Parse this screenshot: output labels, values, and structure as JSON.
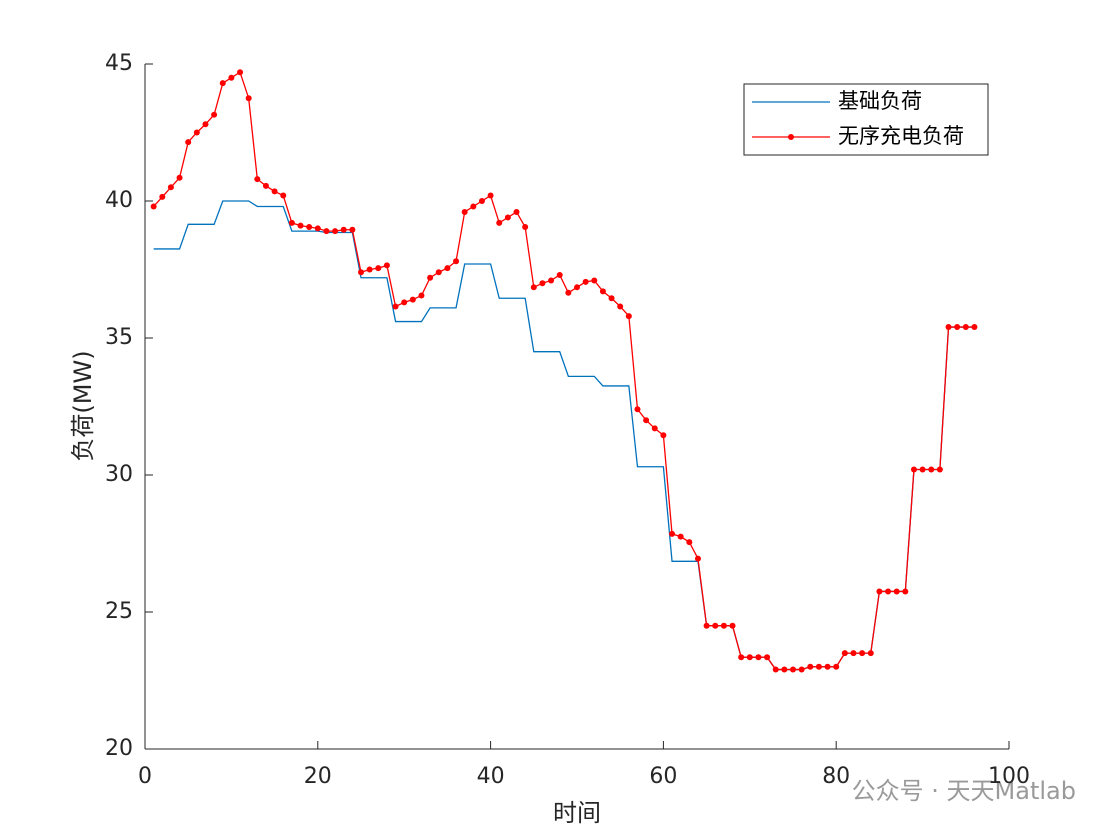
{
  "chart_data": {
    "type": "line",
    "xlabel": "时间",
    "ylabel": "负荷(MW)",
    "x": [
      1,
      2,
      3,
      4,
      5,
      6,
      7,
      8,
      9,
      10,
      11,
      12,
      13,
      14,
      15,
      16,
      17,
      18,
      19,
      20,
      21,
      22,
      23,
      24,
      25,
      26,
      27,
      28,
      29,
      30,
      31,
      32,
      33,
      34,
      35,
      36,
      37,
      38,
      39,
      40,
      41,
      42,
      43,
      44,
      45,
      46,
      47,
      48,
      49,
      50,
      51,
      52,
      53,
      54,
      55,
      56,
      57,
      58,
      59,
      60,
      61,
      62,
      63,
      64,
      65,
      66,
      67,
      68,
      69,
      70,
      71,
      72,
      73,
      74,
      75,
      76,
      77,
      78,
      79,
      80,
      81,
      82,
      83,
      84,
      85,
      86,
      87,
      88,
      89,
      90,
      91,
      92,
      93,
      94,
      95,
      96
    ],
    "series": [
      {
        "name": "基础负荷",
        "color": "#0072BD",
        "marker": false,
        "values": [
          38.25,
          38.25,
          38.25,
          38.25,
          39.15,
          39.15,
          39.15,
          39.15,
          40.0,
          40.0,
          40.0,
          40.0,
          39.8,
          39.8,
          39.8,
          39.8,
          38.9,
          38.9,
          38.9,
          38.9,
          38.85,
          38.85,
          38.85,
          38.85,
          37.2,
          37.2,
          37.2,
          37.2,
          35.6,
          35.6,
          35.6,
          35.6,
          36.1,
          36.1,
          36.1,
          36.1,
          37.7,
          37.7,
          37.7,
          37.7,
          36.45,
          36.45,
          36.45,
          36.45,
          34.5,
          34.5,
          34.5,
          34.5,
          33.6,
          33.6,
          33.6,
          33.6,
          33.25,
          33.25,
          33.25,
          33.25,
          30.3,
          30.3,
          30.3,
          30.3,
          26.85,
          26.85,
          26.85,
          26.85,
          24.5,
          24.5,
          24.5,
          24.5,
          23.35,
          23.35,
          23.35,
          23.35,
          22.9,
          22.9,
          22.9,
          22.9,
          23.0,
          23.0,
          23.0,
          23.0,
          23.5,
          23.5,
          23.5,
          23.5,
          25.75,
          25.75,
          25.75,
          25.75,
          30.2,
          30.2,
          30.2,
          30.2,
          35.4,
          35.4,
          35.4,
          35.4
        ]
      },
      {
        "name": "无序充电负荷",
        "color": "#FF0000",
        "marker": true,
        "values": [
          39.8,
          40.15,
          40.5,
          40.85,
          42.15,
          42.5,
          42.8,
          43.15,
          44.3,
          44.5,
          44.7,
          43.75,
          40.8,
          40.55,
          40.35,
          40.2,
          39.2,
          39.1,
          39.05,
          39.0,
          38.9,
          38.9,
          38.95,
          38.95,
          37.4,
          37.5,
          37.55,
          37.65,
          36.15,
          36.3,
          36.4,
          36.55,
          37.2,
          37.4,
          37.55,
          37.8,
          39.6,
          39.8,
          40.0,
          40.2,
          39.2,
          39.4,
          39.6,
          39.05,
          36.85,
          37.0,
          37.1,
          37.3,
          36.65,
          36.85,
          37.05,
          37.1,
          36.7,
          36.45,
          36.15,
          35.8,
          32.4,
          32.0,
          31.7,
          31.45,
          27.85,
          27.75,
          27.55,
          26.95,
          24.5,
          24.5,
          24.5,
          24.5,
          23.35,
          23.35,
          23.35,
          23.35,
          22.9,
          22.9,
          22.9,
          22.9,
          23.0,
          23.0,
          23.0,
          23.0,
          23.5,
          23.5,
          23.5,
          23.5,
          25.75,
          25.75,
          25.75,
          25.75,
          30.2,
          30.2,
          30.2,
          30.2,
          35.4,
          35.4,
          35.4,
          35.4
        ]
      }
    ],
    "xlim": [
      0,
      100
    ],
    "ylim": [
      20,
      45
    ],
    "xticks": [
      0,
      20,
      40,
      60,
      80,
      100
    ],
    "yticks": [
      20,
      25,
      30,
      35,
      40,
      45
    ],
    "grid": false,
    "legend": "northeast",
    "watermark": "公众号 · 天天Matlab"
  }
}
